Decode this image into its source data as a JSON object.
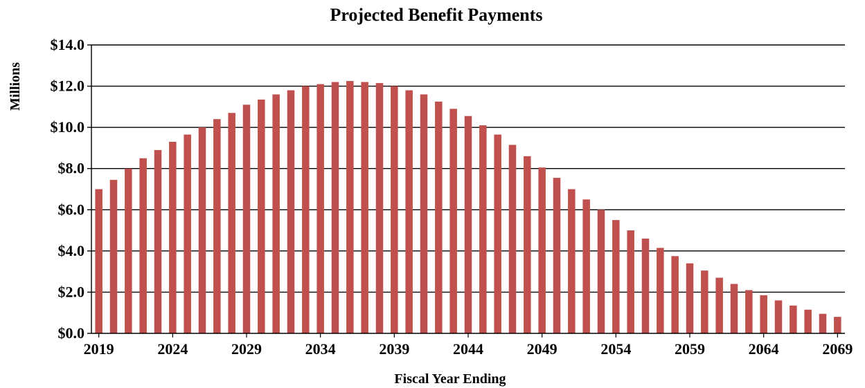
{
  "chart_data": {
    "type": "bar",
    "title": "Projected Benefit Payments",
    "xlabel": "Fiscal Year Ending",
    "ylabel": "Millions",
    "ylim": [
      0,
      14
    ],
    "yticks": [
      0,
      2,
      4,
      6,
      8,
      10,
      12,
      14
    ],
    "ytick_labels": [
      "$0.0",
      "$2.0",
      "$4.0",
      "$6.0",
      "$8.0",
      "$10.0",
      "$12.0",
      "$14.0"
    ],
    "xtick_labels": [
      "2019",
      "2024",
      "2029",
      "2034",
      "2039",
      "2044",
      "2049",
      "2054",
      "2059",
      "2064",
      "2069"
    ],
    "grid": true,
    "bar_color": "#C0504D",
    "categories": [
      2019,
      2020,
      2021,
      2022,
      2023,
      2024,
      2025,
      2026,
      2027,
      2028,
      2029,
      2030,
      2031,
      2032,
      2033,
      2034,
      2035,
      2036,
      2037,
      2038,
      2039,
      2040,
      2041,
      2042,
      2043,
      2044,
      2045,
      2046,
      2047,
      2048,
      2049,
      2050,
      2051,
      2052,
      2053,
      2054,
      2055,
      2056,
      2057,
      2058,
      2059,
      2060,
      2061,
      2062,
      2063,
      2064,
      2065,
      2066,
      2067,
      2068,
      2069
    ],
    "values": [
      7.0,
      7.45,
      8.0,
      8.5,
      8.9,
      9.3,
      9.65,
      10.0,
      10.4,
      10.7,
      11.1,
      11.35,
      11.6,
      11.8,
      12.0,
      12.1,
      12.2,
      12.25,
      12.2,
      12.15,
      12.0,
      11.8,
      11.6,
      11.25,
      10.9,
      10.55,
      10.1,
      9.65,
      9.15,
      8.6,
      8.05,
      7.55,
      7.0,
      6.5,
      6.0,
      5.5,
      5.0,
      4.6,
      4.15,
      3.75,
      3.4,
      3.05,
      2.7,
      2.4,
      2.1,
      1.85,
      1.6,
      1.35,
      1.15,
      0.95,
      0.8
    ]
  }
}
